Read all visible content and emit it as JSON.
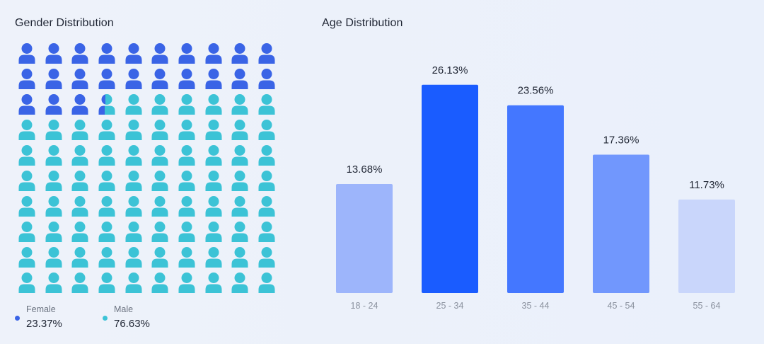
{
  "gender": {
    "title": "Gender Distribution",
    "female": {
      "label": "Female",
      "value_text": "23.37%",
      "color": "#3a64e6"
    },
    "male": {
      "label": "Male",
      "value_text": "76.63%",
      "color": "#3cc3d6"
    },
    "icon_grid": {
      "total": 100,
      "female_count": 23.37
    }
  },
  "age": {
    "title": "Age Distribution"
  },
  "chart_data": [
    {
      "type": "waffle",
      "title": "Gender Distribution",
      "categories": [
        "Female",
        "Male"
      ],
      "values": [
        23.37,
        76.63
      ],
      "colors": [
        "#3a64e6",
        "#3cc3d6"
      ],
      "grid": [
        10,
        10
      ]
    },
    {
      "type": "bar",
      "title": "Age Distribution",
      "categories": [
        "18 - 24",
        "25 - 34",
        "35 - 44",
        "45 - 54",
        "55 - 64"
      ],
      "values": [
        13.68,
        26.13,
        23.56,
        17.36,
        11.73
      ],
      "labels": [
        "13.68%",
        "26.13%",
        "23.56%",
        "17.36%",
        "11.73%"
      ],
      "colors": [
        "#9db5fb",
        "#1a5cff",
        "#4477ff",
        "#7197fd",
        "#c9d6fb"
      ],
      "ylim": [
        0,
        27
      ],
      "grid": false
    }
  ]
}
